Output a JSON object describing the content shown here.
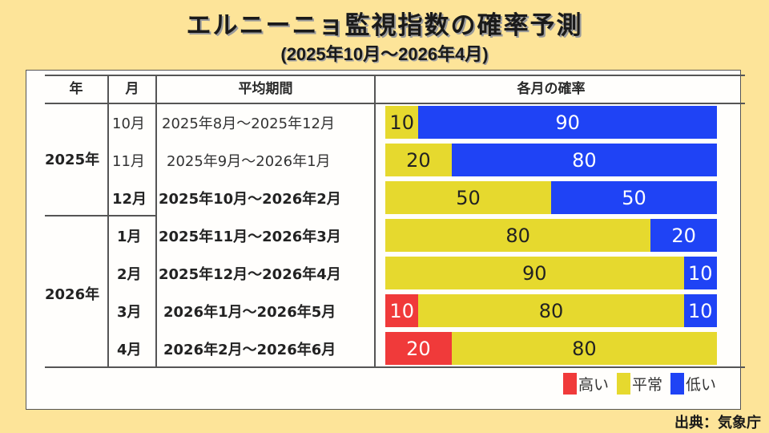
{
  "title": "エルニーニョ監視指数の確率予測",
  "subtitle": "(2025年10月～2026年4月)",
  "table": {
    "headers": {
      "year": "年",
      "month": "月",
      "period": "平均期間",
      "probability": "各月の確率"
    },
    "years": [
      "2025年",
      "2026年"
    ],
    "rows": [
      {
        "month": "10月",
        "period": "2025年8月～2025年12月",
        "bold": false
      },
      {
        "month": "11月",
        "period": "2025年9月～2026年1月",
        "bold": false
      },
      {
        "month": "12月",
        "period": "2025年10月～2026年2月",
        "bold": true
      },
      {
        "month": "1月",
        "period": "2025年11月～2026年3月",
        "bold": true
      },
      {
        "month": "2月",
        "period": "2025年12月～2026年4月",
        "bold": true
      },
      {
        "month": "3月",
        "period": "2026年1月～2026年5月",
        "bold": true
      },
      {
        "month": "4月",
        "period": "2026年2月～2026年6月",
        "bold": true
      }
    ]
  },
  "legend": {
    "high": "高い",
    "normal": "平常",
    "low": "低い"
  },
  "colors": {
    "high": "#f03a3a",
    "normal": "#e6d92e",
    "low": "#1f43f5",
    "background": "#fde499"
  },
  "source": "出典：気象庁",
  "chart_data": {
    "type": "bar",
    "stacked": true,
    "orientation": "horizontal",
    "title": "エルニーニョ監視指数の確率予測",
    "subtitle": "(2025年10月～2026年4月)",
    "categories": [
      "2025年10月",
      "2025年11月",
      "2025年12月",
      "2026年1月",
      "2026年2月",
      "2026年3月",
      "2026年4月"
    ],
    "series": [
      {
        "name": "高い",
        "color": "#f03a3a",
        "values": [
          0,
          0,
          0,
          0,
          0,
          10,
          20
        ]
      },
      {
        "name": "平常",
        "color": "#e6d92e",
        "values": [
          10,
          20,
          50,
          80,
          90,
          80,
          80
        ]
      },
      {
        "name": "低い",
        "color": "#1f43f5",
        "values": [
          90,
          80,
          50,
          20,
          10,
          10,
          0
        ]
      }
    ],
    "xlabel": "",
    "ylabel": "",
    "xlim": [
      0,
      100
    ],
    "legend_position": "bottom-right",
    "grid": false
  }
}
